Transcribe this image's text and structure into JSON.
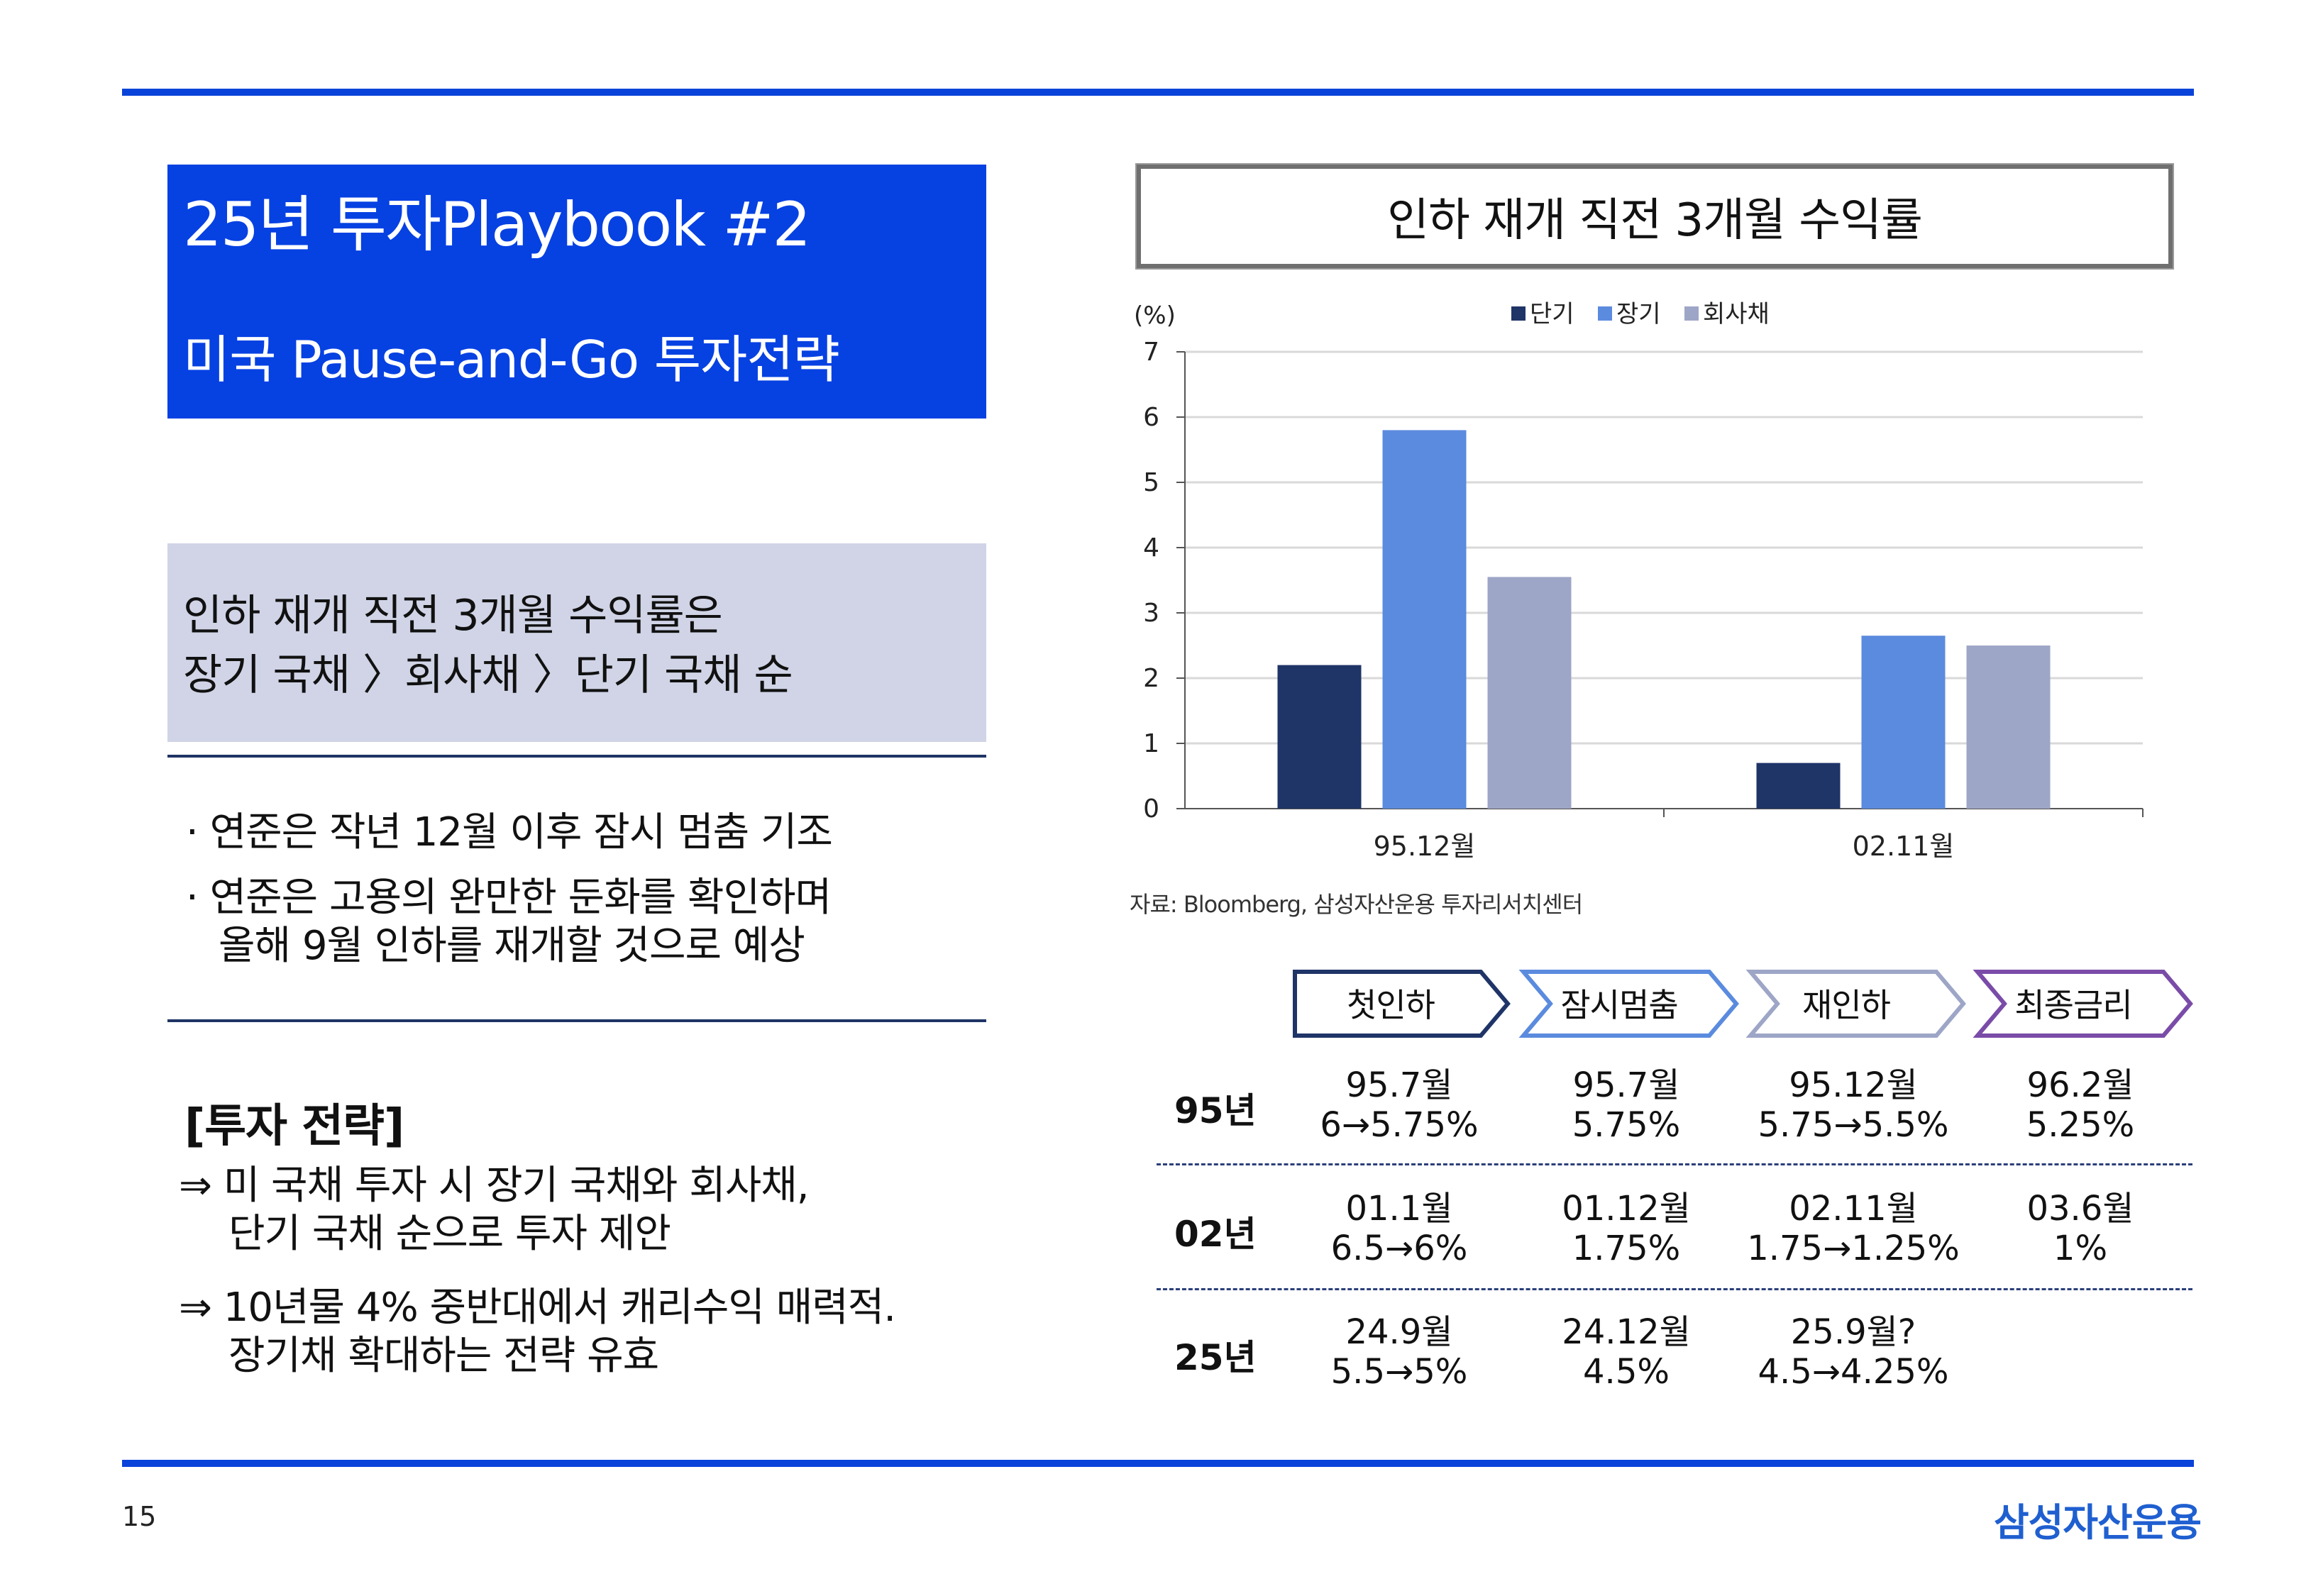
{
  "header": {
    "title": "25년 투자Playbook #2",
    "subtitle": "미국 Pause-and-Go 투자전략"
  },
  "summary": {
    "line1": "인하 재개 직전 3개월 수익률은",
    "line2": "장기 국채 〉회사채 〉단기 국채 순"
  },
  "bullets": [
    {
      "line1": "· 연준은 작년 12월 이후 잠시 멈춤 기조"
    },
    {
      "line1": "· 연준은 고용의 완만한 둔화를 확인하며",
      "line2": "올해 9월 인하를 재개할 것으로 예상"
    }
  ],
  "strategy": {
    "title": "[투자 전략]",
    "items": [
      {
        "line1": "⇒ 미 국채 투자 시 장기 국채와 회사채,",
        "line2": "단기 국채 순으로 투자 제안"
      },
      {
        "line1": "⇒ 10년물 4% 중반대에서 캐리수익 매력적.",
        "line2": "장기채 확대하는 전략 유효"
      }
    ]
  },
  "chart_title": "인하 재개 직전 3개월 수익률",
  "chart_data": {
    "type": "bar",
    "title": "인하 재개 직전 3개월 수익률",
    "ylabel": "(%)",
    "xlabel": "",
    "categories": [
      "95.12월",
      "02.11월"
    ],
    "series": [
      {
        "name": "단기",
        "color": "#1f3467",
        "values": [
          2.2,
          0.7
        ]
      },
      {
        "name": "장기",
        "color": "#5b8bde",
        "values": [
          5.8,
          2.65
        ]
      },
      {
        "name": "회사채",
        "color": "#9ea6c7",
        "values": [
          3.55,
          2.5
        ]
      }
    ],
    "ylim": [
      0,
      7
    ],
    "yticks": [
      0,
      1,
      2,
      3,
      4,
      5,
      6,
      7
    ],
    "grid": true,
    "legend": "top-center"
  },
  "source": "자료: Bloomberg, 삼성자산운용 투자리서치센터",
  "timeline": {
    "stages": [
      {
        "label": "첫인하",
        "color": "#1f3467",
        "fill": "#ffffff"
      },
      {
        "label": "잠시멈춤",
        "color": "#5b8bde",
        "fill": "#ffffff"
      },
      {
        "label": "재인하",
        "color": "#9ea6c7",
        "fill": "#ffffff"
      },
      {
        "label": "최종금리",
        "color": "#7a4ca8",
        "fill": "#ffffff"
      }
    ],
    "rows": [
      {
        "label": "95년",
        "cells": [
          {
            "l1": "95.7월",
            "l2": "6→5.75%"
          },
          {
            "l1": "95.7월",
            "l2": "5.75%"
          },
          {
            "l1": "95.12월",
            "l2": "5.75→5.5%"
          },
          {
            "l1": "96.2월",
            "l2": "5.25%"
          }
        ]
      },
      {
        "label": "02년",
        "cells": [
          {
            "l1": "01.1월",
            "l2": "6.5→6%"
          },
          {
            "l1": "01.12월",
            "l2": "1.75%"
          },
          {
            "l1": "02.11월",
            "l2": "1.75→1.25%"
          },
          {
            "l1": "03.6월",
            "l2": "1%"
          }
        ]
      },
      {
        "label": "25년",
        "cells": [
          {
            "l1": "24.9월",
            "l2": "5.5→5%"
          },
          {
            "l1": "24.12월",
            "l2": "4.5%"
          },
          {
            "l1": "25.9월?",
            "l2": "4.5→4.25%"
          },
          {
            "l1": "",
            "l2": ""
          }
        ]
      }
    ]
  },
  "footer": {
    "page_number": "15",
    "logo": "삼성자산운용"
  }
}
